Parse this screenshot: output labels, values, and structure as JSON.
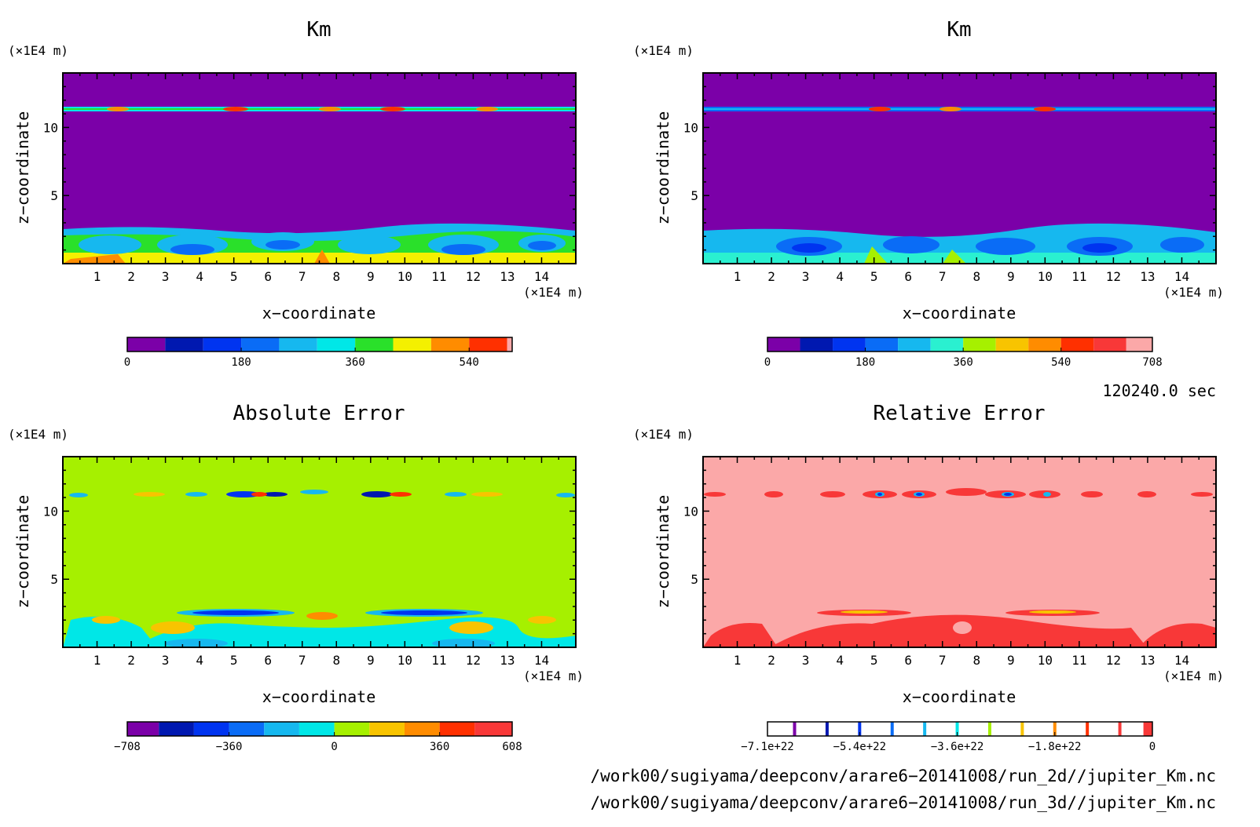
{
  "colors": {
    "purple": "#7b00a8",
    "navy": "#0018b0",
    "blue": "#0034f0",
    "royal": "#0a6cf6",
    "sky": "#16b8ef",
    "cyan": "#00e7e7",
    "green": "#2ae02a",
    "lime": "#a6f000",
    "yellow": "#f4f000",
    "gold": "#f8c400",
    "orange": "#ff8c00",
    "red": "#ff3000",
    "crimson": "#f83838",
    "pink": "#fba8a8"
  },
  "chart_data": [
    {
      "type": "heatmap",
      "title": "Km",
      "xlabel": "x−coordinate",
      "ylabel": "z−coordinate",
      "x_unit": "(×1E4 m)",
      "y_unit": "(×1E4 m)",
      "xlim": [
        0,
        15
      ],
      "ylim": [
        0,
        14
      ],
      "x_ticks": [
        "1",
        "2",
        "3",
        "4",
        "5",
        "6",
        "7",
        "8",
        "9",
        "10",
        "11",
        "12",
        "13",
        "14"
      ],
      "y_ticks": [
        "5",
        "10"
      ],
      "colorbar": {
        "labels": [
          "0",
          "180",
          "360",
          "540"
        ],
        "label_values": [
          0,
          180,
          360,
          540
        ],
        "min": 0,
        "max": 608,
        "levels": [
          0,
          60,
          120,
          180,
          240,
          300,
          360,
          420,
          480,
          540,
          600,
          608
        ],
        "colors": [
          "#7b00a8",
          "#0018b0",
          "#0034f0",
          "#0a6cf6",
          "#16b8ef",
          "#00e7e7",
          "#2ae02a",
          "#f4f000",
          "#ff8c00",
          "#ff3000",
          "#fba8a8"
        ]
      }
    },
    {
      "type": "heatmap",
      "title": "Km",
      "xlabel": "x−coordinate",
      "ylabel": "z−coordinate",
      "x_unit": "(×1E4 m)",
      "y_unit": "(×1E4 m)",
      "xlim": [
        0,
        15
      ],
      "ylim": [
        0,
        14
      ],
      "x_ticks": [
        "1",
        "2",
        "3",
        "4",
        "5",
        "6",
        "7",
        "8",
        "9",
        "10",
        "11",
        "12",
        "13",
        "14"
      ],
      "y_ticks": [
        "5",
        "10"
      ],
      "colorbar": {
        "labels": [
          "0",
          "180",
          "360",
          "540",
          "708"
        ],
        "label_values": [
          0,
          180,
          360,
          540,
          708
        ],
        "min": 0,
        "max": 708,
        "levels": [
          0,
          60,
          120,
          180,
          240,
          300,
          360,
          420,
          480,
          540,
          600,
          660,
          708
        ],
        "colors": [
          "#7b00a8",
          "#0018b0",
          "#0034f0",
          "#0a6cf6",
          "#16b8ef",
          "#2af0d0",
          "#a6f000",
          "#f8c400",
          "#ff8c00",
          "#ff3000",
          "#f83838",
          "#fba8a8"
        ]
      }
    },
    {
      "type": "heatmap",
      "title": "Absolute Error",
      "xlabel": "x−coordinate",
      "ylabel": "z−coordinate",
      "x_unit": "(×1E4 m)",
      "y_unit": "(×1E4 m)",
      "xlim": [
        0,
        15
      ],
      "ylim": [
        0,
        14
      ],
      "x_ticks": [
        "1",
        "2",
        "3",
        "4",
        "5",
        "6",
        "7",
        "8",
        "9",
        "10",
        "11",
        "12",
        "13",
        "14"
      ],
      "y_ticks": [
        "5",
        "10"
      ],
      "colorbar": {
        "labels": [
          "−708",
          "−360",
          "0",
          "360",
          "608"
        ],
        "label_values": [
          -708,
          -360,
          0,
          360,
          608
        ],
        "min": -708,
        "max": 608,
        "levels": [
          -708,
          -600,
          -480,
          -360,
          -240,
          -120,
          0,
          120,
          240,
          360,
          480,
          608
        ],
        "colors": [
          "#7b00a8",
          "#0018b0",
          "#0034f0",
          "#0a6cf6",
          "#16b8ef",
          "#00e7e7",
          "#a6f000",
          "#f8c400",
          "#ff8c00",
          "#ff3000",
          "#f83838"
        ]
      }
    },
    {
      "type": "heatmap",
      "title": "Relative Error",
      "xlabel": "x−coordinate",
      "ylabel": "z−coordinate",
      "x_unit": "(×1E4 m)",
      "y_unit": "(×1E4 m)",
      "xlim": [
        0,
        15
      ],
      "ylim": [
        0,
        14
      ],
      "x_ticks": [
        "1",
        "2",
        "3",
        "4",
        "5",
        "6",
        "7",
        "8",
        "9",
        "10",
        "11",
        "12",
        "13",
        "14"
      ],
      "y_ticks": [
        "5",
        "10"
      ],
      "colorbar": {
        "labels": [
          "−7.1e+22",
          "−5.4e+22",
          "−3.6e+22",
          "−1.8e+22",
          "0"
        ],
        "label_values": [
          -7.1e+22,
          -5.4e+22,
          -3.6e+22,
          -1.8e+22,
          0
        ],
        "min": -7.1e+22,
        "max": 0,
        "marker_values": [
          -6.6e+22,
          -6e+22,
          -5.4e+22,
          -4.8e+22,
          -4.2e+22,
          -3.6e+22,
          -3e+22,
          -2.4e+22,
          -1.8e+22,
          -1.2e+22,
          -6e+21
        ],
        "marker_colors": [
          "#7b00a8",
          "#0018b0",
          "#0034f0",
          "#0a6cf6",
          "#16b8ef",
          "#00e7e7",
          "#a6f000",
          "#f8c400",
          "#ff8c00",
          "#ff3000",
          "#f83838"
        ],
        "band_color": "#f83838"
      }
    }
  ],
  "time_label": "120240.0 sec",
  "footer": [
    "/work00/sugiyama/deepconv/arare6−20141008/run_2d//jupiter_Km.nc",
    "/work00/sugiyama/deepconv/arare6−20141008/run_3d//jupiter_Km.nc"
  ]
}
